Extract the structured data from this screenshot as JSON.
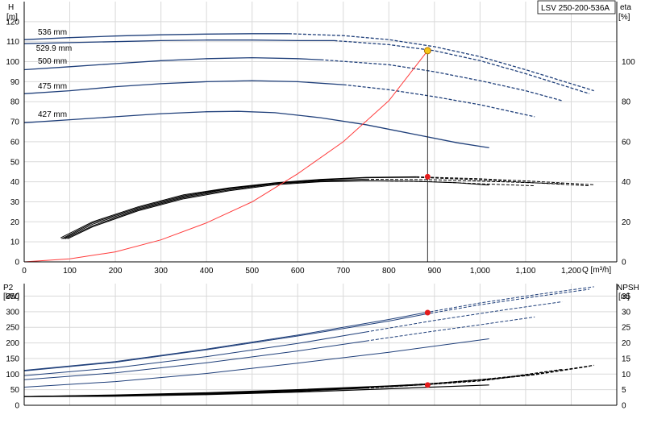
{
  "chart_data": [
    {
      "type": "line",
      "title": "",
      "model_label": "LSV 250-200-536A",
      "x_axis": {
        "label": "Q [m³/h]",
        "ticks": [
          "0",
          "100",
          "200",
          "300",
          "400",
          "500",
          "600",
          "700",
          "800",
          "900",
          "1,000",
          "1,100",
          "1,200"
        ],
        "lim": [
          0,
          1300
        ]
      },
      "y_left": {
        "label_line1": "H",
        "label_line2": "[m]",
        "ticks": [
          "0",
          "10",
          "20",
          "30",
          "40",
          "50",
          "60",
          "70",
          "80",
          "90",
          "100",
          "110",
          "120"
        ],
        "lim": [
          0,
          130
        ]
      },
      "y_right": {
        "label_line1": "eta",
        "label_line2": "[%]",
        "ticks": [
          "0",
          "20",
          "40",
          "60",
          "80",
          "100"
        ],
        "lim": [
          0,
          130
        ]
      },
      "grid": true,
      "head_curves": [
        {
          "name": "536 mm",
          "label_at": [
            30,
            113.5
          ],
          "solid": [
            [
              0,
              111
            ],
            [
              100,
              112
            ],
            [
              200,
              112.8
            ],
            [
              300,
              113.4
            ],
            [
              400,
              113.8
            ],
            [
              500,
              114
            ],
            [
              580,
              114
            ]
          ],
          "dashed": [
            [
              580,
              114
            ],
            [
              700,
              113
            ],
            [
              800,
              111
            ],
            [
              900,
              107.5
            ],
            [
              1000,
              102.5
            ],
            [
              1100,
              96
            ],
            [
              1250,
              85.5
            ]
          ]
        },
        {
          "name": "529.9 mm",
          "label_at": [
            26,
            105.5
          ],
          "solid": [
            [
              0,
              109
            ],
            [
              100,
              109.5
            ],
            [
              200,
              110
            ],
            [
              300,
              110.5
            ],
            [
              400,
              110.8
            ],
            [
              500,
              110.8
            ],
            [
              600,
              110.5
            ],
            [
              680,
              110.5
            ]
          ],
          "dashed": [
            [
              680,
              110.5
            ],
            [
              800,
              108.5
            ],
            [
              900,
              105.5
            ],
            [
              1000,
              100.5
            ],
            [
              1100,
              94
            ],
            [
              1240,
              84
            ]
          ]
        },
        {
          "name": "500 mm",
          "label_at": [
            30,
            99
          ],
          "solid": [
            [
              0,
              96
            ],
            [
              100,
              97.5
            ],
            [
              200,
              99
            ],
            [
              300,
              100.5
            ],
            [
              400,
              101.5
            ],
            [
              500,
              102
            ],
            [
              600,
              101.5
            ],
            [
              650,
              101
            ]
          ],
          "dashed": [
            [
              650,
              101
            ],
            [
              800,
              98.5
            ],
            [
              900,
              95
            ],
            [
              1000,
              90.5
            ],
            [
              1100,
              85.5
            ],
            [
              1180,
              80.5
            ]
          ]
        },
        {
          "name": "475 mm",
          "label_at": [
            30,
            86.5
          ],
          "solid": [
            [
              0,
              84
            ],
            [
              100,
              85.5
            ],
            [
              200,
              87.5
            ],
            [
              300,
              89
            ],
            [
              400,
              90
            ],
            [
              500,
              90.5
            ],
            [
              600,
              90
            ],
            [
              700,
              88.5
            ]
          ],
          "dashed": [
            [
              700,
              88.5
            ],
            [
              800,
              86
            ],
            [
              900,
              82.5
            ],
            [
              1000,
              78.5
            ],
            [
              1120,
              72.5
            ]
          ]
        },
        {
          "name": "427 mm",
          "label_at": [
            30,
            72.5
          ],
          "solid": [
            [
              0,
              69.5
            ],
            [
              100,
              71
            ],
            [
              200,
              72.5
            ],
            [
              300,
              74
            ],
            [
              400,
              75
            ],
            [
              470,
              75.2
            ],
            [
              550,
              74.5
            ],
            [
              650,
              72
            ],
            [
              750,
              68.5
            ],
            [
              850,
              64
            ],
            [
              950,
              59.5
            ],
            [
              1020,
              57
            ]
          ],
          "dashed": []
        }
      ],
      "efficiency_curves": [
        {
          "name": "eff-536",
          "solid": [
            [
              80,
              12
            ],
            [
              150,
              20
            ],
            [
              250,
              27.5
            ],
            [
              350,
              33.5
            ],
            [
              450,
              37
            ],
            [
              550,
              39.5
            ],
            [
              650,
              41.2
            ],
            [
              750,
              42.2
            ],
            [
              860,
              42.5
            ]
          ],
          "dashed": [
            [
              860,
              42.5
            ],
            [
              1000,
              41.5
            ],
            [
              1120,
              40.2
            ],
            [
              1250,
              38.5
            ]
          ]
        },
        {
          "name": "eff-529.9",
          "solid": [
            [
              82,
              11.5
            ],
            [
              150,
              19.5
            ],
            [
              250,
              27
            ],
            [
              350,
              33
            ],
            [
              450,
              36.8
            ],
            [
              550,
              39.4
            ],
            [
              650,
              41
            ],
            [
              750,
              42
            ],
            [
              860,
              42.2
            ]
          ],
          "dashed": [
            [
              860,
              42.2
            ],
            [
              1000,
              41
            ],
            [
              1120,
              39.5
            ],
            [
              1240,
              38
            ]
          ]
        },
        {
          "name": "eff-500",
          "solid": [
            [
              86,
              11.5
            ],
            [
              150,
              18.8
            ],
            [
              250,
              26.5
            ],
            [
              350,
              32.5
            ],
            [
              450,
              36.5
            ],
            [
              550,
              39.2
            ],
            [
              650,
              40.7
            ],
            [
              750,
              41.3
            ]
          ],
          "dashed": [
            [
              750,
              41.3
            ],
            [
              900,
              41
            ],
            [
              1050,
              40
            ],
            [
              1180,
              39
            ]
          ]
        },
        {
          "name": "eff-475",
          "solid": [
            [
              90,
              11.5
            ],
            [
              150,
              18
            ],
            [
              250,
              26
            ],
            [
              350,
              32
            ],
            [
              450,
              36
            ],
            [
              550,
              39
            ],
            [
              650,
              40.3
            ],
            [
              750,
              40.6
            ]
          ],
          "dashed": [
            [
              750,
              40.6
            ],
            [
              900,
              40
            ],
            [
              1000,
              39
            ],
            [
              1120,
              38
            ]
          ]
        },
        {
          "name": "eff-427",
          "solid": [
            [
              95,
              11.5
            ],
            [
              150,
              17.5
            ],
            [
              250,
              25.5
            ],
            [
              350,
              31.5
            ],
            [
              450,
              35.5
            ],
            [
              550,
              38.5
            ],
            [
              650,
              40
            ],
            [
              750,
              40.5
            ],
            [
              850,
              40.3
            ],
            [
              950,
              39.5
            ],
            [
              1020,
              38.3
            ]
          ],
          "dashed": []
        }
      ],
      "system_curve": [
        [
          0,
          0
        ],
        [
          100,
          1.5
        ],
        [
          200,
          5
        ],
        [
          300,
          11
        ],
        [
          400,
          19.5
        ],
        [
          500,
          30
        ],
        [
          600,
          44
        ],
        [
          700,
          60
        ],
        [
          800,
          80.5
        ],
        [
          885,
          105.5
        ]
      ],
      "duty_point": {
        "q": 885,
        "h": 105.5,
        "eta": 42.5
      }
    },
    {
      "type": "line",
      "title": "",
      "x_axis": {
        "lim": [
          0,
          1300
        ]
      },
      "y_left": {
        "label_line1": "P2",
        "label_line2": "[kW]",
        "ticks": [
          "0",
          "50",
          "100",
          "150",
          "200",
          "250",
          "300",
          "350"
        ],
        "lim": [
          0,
          390
        ]
      },
      "y_right": {
        "label_line1": "NPSH",
        "label_line2": "[m]",
        "ticks": [
          "0",
          "5",
          "10",
          "15",
          "20",
          "25",
          "30",
          "35"
        ],
        "lim": [
          0,
          39
        ]
      },
      "grid": true,
      "power_curves": [
        {
          "name": "p2-536",
          "solid": [
            [
              0,
              112
            ],
            [
              200,
              140
            ],
            [
              400,
              180
            ],
            [
              600,
              225
            ],
            [
              800,
              275
            ],
            [
              880,
              297
            ]
          ],
          "dashed": [
            [
              880,
              297
            ],
            [
              1000,
              328
            ],
            [
              1120,
              354
            ],
            [
              1250,
              380
            ]
          ]
        },
        {
          "name": "p2-529.9",
          "solid": [
            [
              0,
              110
            ],
            [
              200,
              138
            ],
            [
              400,
              178
            ],
            [
              600,
              222
            ],
            [
              800,
              270
            ],
            [
              880,
              292
            ]
          ],
          "dashed": [
            [
              880,
              292
            ],
            [
              1000,
              322
            ],
            [
              1120,
              348
            ],
            [
              1240,
              372
            ]
          ]
        },
        {
          "name": "p2-500",
          "solid": [
            [
              0,
              95
            ],
            [
              200,
              120
            ],
            [
              400,
              156
            ],
            [
              600,
              198
            ],
            [
              750,
              235
            ]
          ],
          "dashed": [
            [
              750,
              235
            ],
            [
              900,
              272
            ],
            [
              1050,
              305
            ],
            [
              1180,
              332
            ]
          ]
        },
        {
          "name": "p2-475",
          "solid": [
            [
              0,
              82
            ],
            [
              200,
              104
            ],
            [
              400,
              136
            ],
            [
              600,
              174
            ],
            [
              750,
              206
            ]
          ],
          "dashed": [
            [
              750,
              206
            ],
            [
              900,
              238
            ],
            [
              1000,
              258
            ],
            [
              1120,
              283
            ]
          ]
        },
        {
          "name": "p2-427",
          "solid": [
            [
              0,
              58
            ],
            [
              200,
              76
            ],
            [
              400,
              102
            ],
            [
              600,
              135
            ],
            [
              800,
              170
            ],
            [
              1020,
              213
            ]
          ],
          "dashed": []
        }
      ],
      "npsh_curves": [
        {
          "name": "npsh-536",
          "solid": [
            [
              0,
              2.8
            ],
            [
              200,
              3.3
            ],
            [
              400,
              4
            ],
            [
              600,
              5
            ],
            [
              800,
              6.2
            ],
            [
              880,
              6.8
            ]
          ],
          "dashed": [
            [
              880,
              6.8
            ],
            [
              1000,
              8.2
            ],
            [
              1120,
              10
            ],
            [
              1250,
              12.8
            ]
          ]
        },
        {
          "name": "npsh-529.9",
          "solid": [
            [
              0,
              2.8
            ],
            [
              200,
              3.2
            ],
            [
              400,
              3.9
            ],
            [
              600,
              4.9
            ],
            [
              800,
              6
            ],
            [
              880,
              6.6
            ]
          ],
          "dashed": [
            [
              880,
              6.6
            ],
            [
              1000,
              8
            ],
            [
              1120,
              9.8
            ],
            [
              1240,
              12.5
            ]
          ]
        },
        {
          "name": "npsh-500",
          "solid": [
            [
              0,
              2.8
            ],
            [
              200,
              3.1
            ],
            [
              400,
              3.8
            ],
            [
              600,
              4.7
            ],
            [
              750,
              5.7
            ]
          ],
          "dashed": [
            [
              750,
              5.7
            ],
            [
              900,
              7
            ],
            [
              1050,
              8.8
            ],
            [
              1180,
              11.5
            ]
          ]
        },
        {
          "name": "npsh-475",
          "solid": [
            [
              0,
              2.8
            ],
            [
              200,
              3
            ],
            [
              400,
              3.6
            ],
            [
              600,
              4.5
            ],
            [
              750,
              5.5
            ]
          ],
          "dashed": [
            [
              750,
              5.5
            ],
            [
              900,
              6.8
            ],
            [
              1000,
              7.8
            ],
            [
              1120,
              10
            ]
          ]
        },
        {
          "name": "npsh-427",
          "solid": [
            [
              0,
              2.8
            ],
            [
              200,
              2.9
            ],
            [
              400,
              3.4
            ],
            [
              600,
              4.2
            ],
            [
              800,
              5.3
            ],
            [
              1020,
              6.5
            ]
          ],
          "dashed": []
        }
      ],
      "duty_point": {
        "q": 885,
        "p2": 297,
        "npsh": 6.5
      }
    }
  ],
  "colors": {
    "curve_blue": "#1f3f7a",
    "system_red": "#ff3b3b",
    "duty_marker": "#e41b1b",
    "duty_yellow": "#f5c518",
    "grid": "#d9d9d9",
    "axis": "#000000"
  }
}
